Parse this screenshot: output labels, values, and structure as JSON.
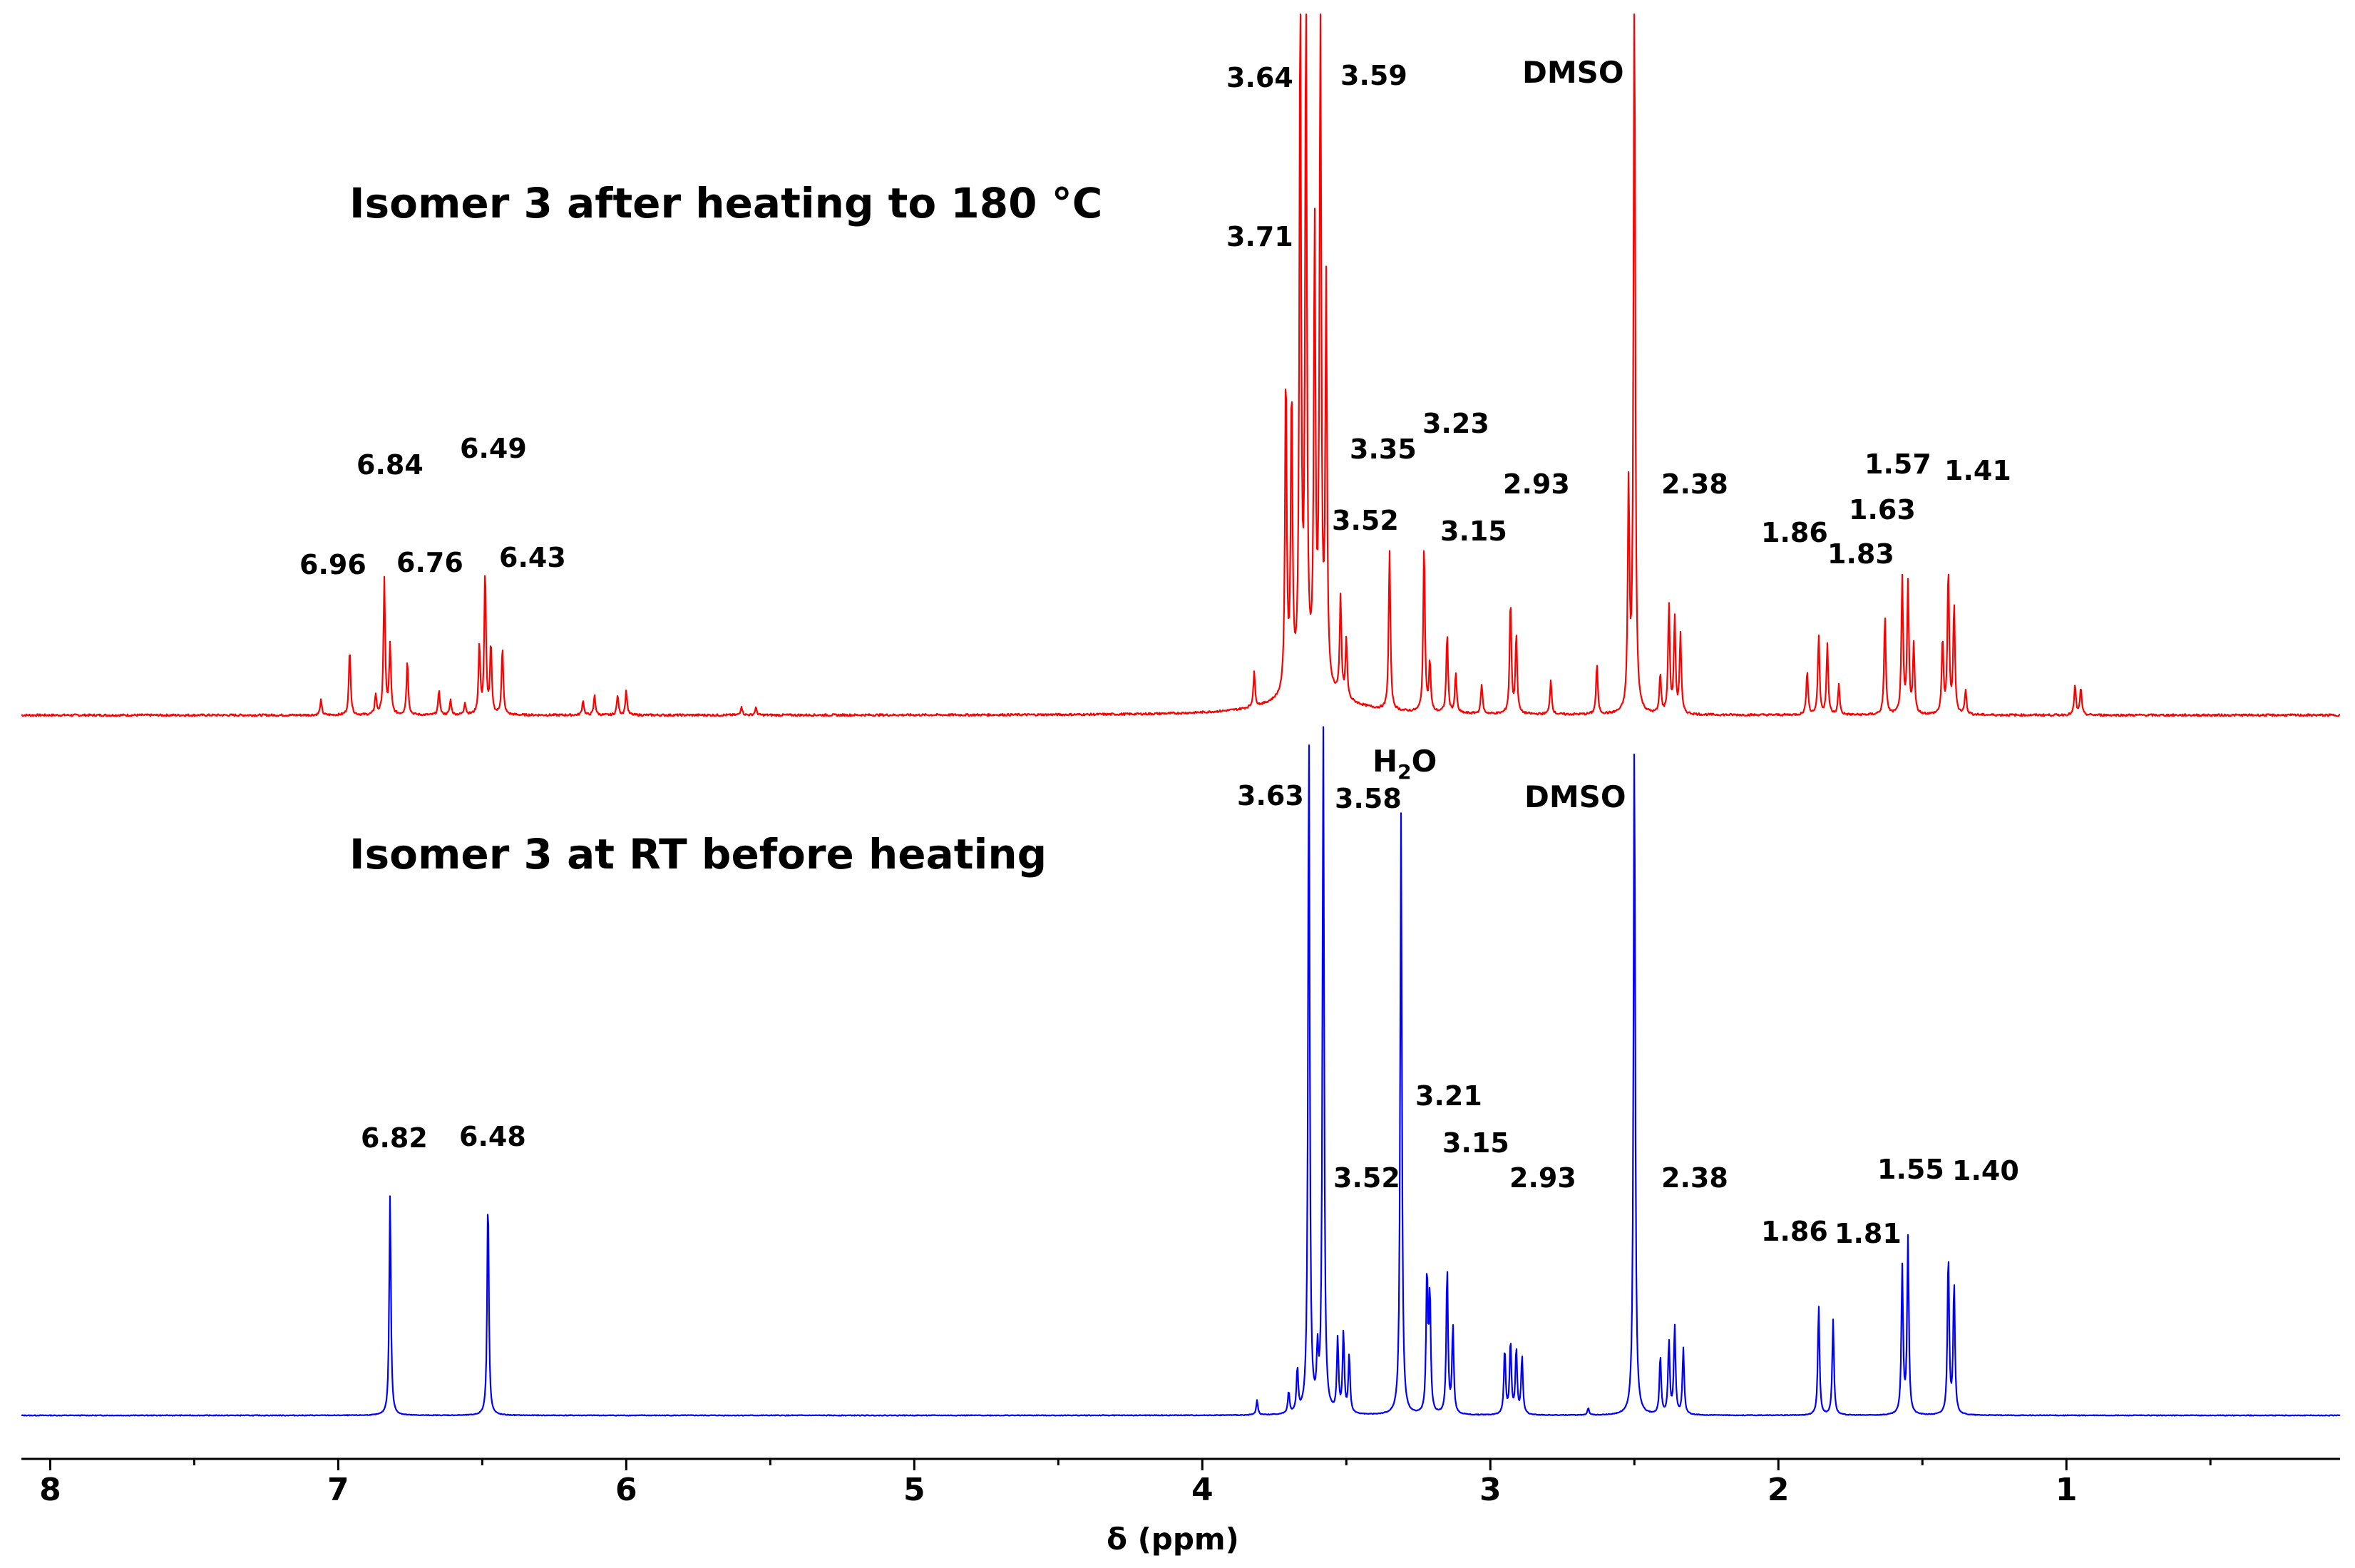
{
  "chart_data": {
    "type": "line",
    "title": "",
    "xlabel": "δ (ppm)",
    "ylabel": "",
    "xlim": [
      8.1,
      0.05
    ],
    "reversed_x_axis": true,
    "grid": false,
    "x_ticks": [
      8,
      7,
      6,
      5,
      4,
      3,
      2,
      1
    ],
    "x_tick_labels": [
      "8",
      "7",
      "6",
      "5",
      "4",
      "3",
      "2",
      "1"
    ],
    "series": [
      {
        "name": "Isomer 3 after heating to 180 °C",
        "color": "#ff0000",
        "peaks": [
          {
            "ppm": 7.06,
            "height": 0.03
          },
          {
            "ppm": 6.96,
            "height": 0.135
          },
          {
            "ppm": 6.87,
            "height": 0.04
          },
          {
            "ppm": 6.84,
            "height": 0.27
          },
          {
            "ppm": 6.82,
            "height": 0.14
          },
          {
            "ppm": 6.76,
            "height": 0.11
          },
          {
            "ppm": 6.65,
            "height": 0.05
          },
          {
            "ppm": 6.61,
            "height": 0.03
          },
          {
            "ppm": 6.56,
            "height": 0.025
          },
          {
            "ppm": 6.51,
            "height": 0.14
          },
          {
            "ppm": 6.49,
            "height": 0.29
          },
          {
            "ppm": 6.47,
            "height": 0.14
          },
          {
            "ppm": 6.43,
            "height": 0.135
          },
          {
            "ppm": 6.15,
            "height": 0.03
          },
          {
            "ppm": 6.11,
            "height": 0.04
          },
          {
            "ppm": 6.03,
            "height": 0.04
          },
          {
            "ppm": 6.0,
            "height": 0.05
          },
          {
            "ppm": 5.6,
            "height": 0.018
          },
          {
            "ppm": 5.55,
            "height": 0.015
          },
          {
            "ppm": 3.82,
            "height": 0.07
          },
          {
            "ppm": 3.71,
            "height": 0.65
          },
          {
            "ppm": 3.69,
            "height": 0.6
          },
          {
            "ppm": 3.66,
            "height": 1.4
          },
          {
            "ppm": 3.64,
            "height": 1.4
          },
          {
            "ppm": 3.61,
            "height": 0.9
          },
          {
            "ppm": 3.59,
            "height": 1.4
          },
          {
            "ppm": 3.57,
            "height": 0.8
          },
          {
            "ppm": 3.52,
            "height": 0.2
          },
          {
            "ppm": 3.5,
            "height": 0.12
          },
          {
            "ppm": 3.35,
            "height": 0.32
          },
          {
            "ppm": 3.23,
            "height": 0.34
          },
          {
            "ppm": 3.21,
            "height": 0.1
          },
          {
            "ppm": 3.15,
            "height": 0.16
          },
          {
            "ppm": 3.12,
            "height": 0.08
          },
          {
            "ppm": 3.03,
            "height": 0.06
          },
          {
            "ppm": 2.93,
            "height": 0.23
          },
          {
            "ppm": 2.91,
            "height": 0.16
          },
          {
            "ppm": 2.79,
            "height": 0.07
          },
          {
            "ppm": 2.63,
            "height": 0.1
          },
          {
            "ppm": 2.52,
            "height": 0.45
          },
          {
            "ppm": 2.5,
            "height": 1.5
          },
          {
            "ppm": 2.41,
            "height": 0.08
          },
          {
            "ppm": 2.38,
            "height": 0.22
          },
          {
            "ppm": 2.36,
            "height": 0.19
          },
          {
            "ppm": 2.34,
            "height": 0.16
          },
          {
            "ppm": 1.9,
            "height": 0.09
          },
          {
            "ppm": 1.86,
            "height": 0.16
          },
          {
            "ppm": 1.83,
            "height": 0.14
          },
          {
            "ppm": 1.79,
            "height": 0.06
          },
          {
            "ppm": 1.63,
            "height": 0.2
          },
          {
            "ppm": 1.57,
            "height": 0.27
          },
          {
            "ppm": 1.55,
            "height": 0.26
          },
          {
            "ppm": 1.53,
            "height": 0.14
          },
          {
            "ppm": 1.43,
            "height": 0.15
          },
          {
            "ppm": 1.41,
            "height": 0.29
          },
          {
            "ppm": 1.39,
            "height": 0.22
          },
          {
            "ppm": 1.35,
            "height": 0.05
          },
          {
            "ppm": 0.97,
            "height": 0.06
          },
          {
            "ppm": 0.95,
            "height": 0.055
          }
        ]
      },
      {
        "name": "Isomer 3 at RT before heating",
        "color": "#0000ff",
        "peaks": [
          {
            "ppm": 6.82,
            "height": 0.3
          },
          {
            "ppm": 6.48,
            "height": 0.3
          },
          {
            "ppm": 3.81,
            "height": 0.02
          },
          {
            "ppm": 3.7,
            "height": 0.03
          },
          {
            "ppm": 3.67,
            "height": 0.06
          },
          {
            "ppm": 3.63,
            "height": 0.93
          },
          {
            "ppm": 3.6,
            "height": 0.07
          },
          {
            "ppm": 3.58,
            "height": 0.93
          },
          {
            "ppm": 3.53,
            "height": 0.1
          },
          {
            "ppm": 3.51,
            "height": 0.11
          },
          {
            "ppm": 3.49,
            "height": 0.08
          },
          {
            "ppm": 3.31,
            "height": 0.82
          },
          {
            "ppm": 3.22,
            "height": 0.19
          },
          {
            "ppm": 3.21,
            "height": 0.16
          },
          {
            "ppm": 3.15,
            "height": 0.2
          },
          {
            "ppm": 3.13,
            "height": 0.12
          },
          {
            "ppm": 2.95,
            "height": 0.09
          },
          {
            "ppm": 2.93,
            "height": 0.1
          },
          {
            "ppm": 2.91,
            "height": 0.09
          },
          {
            "ppm": 2.89,
            "height": 0.08
          },
          {
            "ppm": 2.66,
            "height": 0.01
          },
          {
            "ppm": 2.5,
            "height": 0.93
          },
          {
            "ppm": 2.41,
            "height": 0.08
          },
          {
            "ppm": 2.38,
            "height": 0.1
          },
          {
            "ppm": 2.36,
            "height": 0.12
          },
          {
            "ppm": 2.33,
            "height": 0.09
          },
          {
            "ppm": 1.86,
            "height": 0.15
          },
          {
            "ppm": 1.81,
            "height": 0.13
          },
          {
            "ppm": 1.57,
            "height": 0.2
          },
          {
            "ppm": 1.55,
            "height": 0.24
          },
          {
            "ppm": 1.41,
            "height": 0.22
          },
          {
            "ppm": 1.39,
            "height": 0.18
          }
        ]
      }
    ],
    "annotations": [
      {
        "spectrum": "top",
        "text": "Isomer 3 after heating to 180 °C",
        "kind": "title"
      },
      {
        "spectrum": "top",
        "text": "DMSO",
        "kind": "solvent"
      },
      {
        "spectrum": "top",
        "text": "3.64"
      },
      {
        "spectrum": "top",
        "text": "3.59"
      },
      {
        "spectrum": "top",
        "text": "3.71"
      },
      {
        "spectrum": "top",
        "text": "6.84"
      },
      {
        "spectrum": "top",
        "text": "6.49"
      },
      {
        "spectrum": "top",
        "text": "6.96"
      },
      {
        "spectrum": "top",
        "text": "6.76"
      },
      {
        "spectrum": "top",
        "text": "6.43"
      },
      {
        "spectrum": "top",
        "text": "3.35"
      },
      {
        "spectrum": "top",
        "text": "3.23"
      },
      {
        "spectrum": "top",
        "text": "3.52"
      },
      {
        "spectrum": "top",
        "text": "3.15"
      },
      {
        "spectrum": "top",
        "text": "2.93"
      },
      {
        "spectrum": "top",
        "text": "2.38"
      },
      {
        "spectrum": "top",
        "text": "1.57"
      },
      {
        "spectrum": "top",
        "text": "1.41"
      },
      {
        "spectrum": "top",
        "text": "1.63"
      },
      {
        "spectrum": "top",
        "text": "1.86"
      },
      {
        "spectrum": "top",
        "text": "1.83"
      },
      {
        "spectrum": "bottom",
        "text": "Isomer 3 at RT before heating",
        "kind": "title"
      },
      {
        "spectrum": "bottom",
        "text": "H",
        "sub": "2",
        "tail": "O",
        "kind": "solvent"
      },
      {
        "spectrum": "bottom",
        "text": "DMSO",
        "kind": "solvent"
      },
      {
        "spectrum": "bottom",
        "text": "3.63"
      },
      {
        "spectrum": "bottom",
        "text": "3.58"
      },
      {
        "spectrum": "bottom",
        "text": "6.82"
      },
      {
        "spectrum": "bottom",
        "text": "6.48"
      },
      {
        "spectrum": "bottom",
        "text": "3.21"
      },
      {
        "spectrum": "bottom",
        "text": "3.15"
      },
      {
        "spectrum": "bottom",
        "text": "3.52"
      },
      {
        "spectrum": "bottom",
        "text": "2.93"
      },
      {
        "spectrum": "bottom",
        "text": "2.38"
      },
      {
        "spectrum": "bottom",
        "text": "1.55"
      },
      {
        "spectrum": "bottom",
        "text": "1.40"
      },
      {
        "spectrum": "bottom",
        "text": "1.86"
      },
      {
        "spectrum": "bottom",
        "text": "1.81"
      }
    ]
  }
}
